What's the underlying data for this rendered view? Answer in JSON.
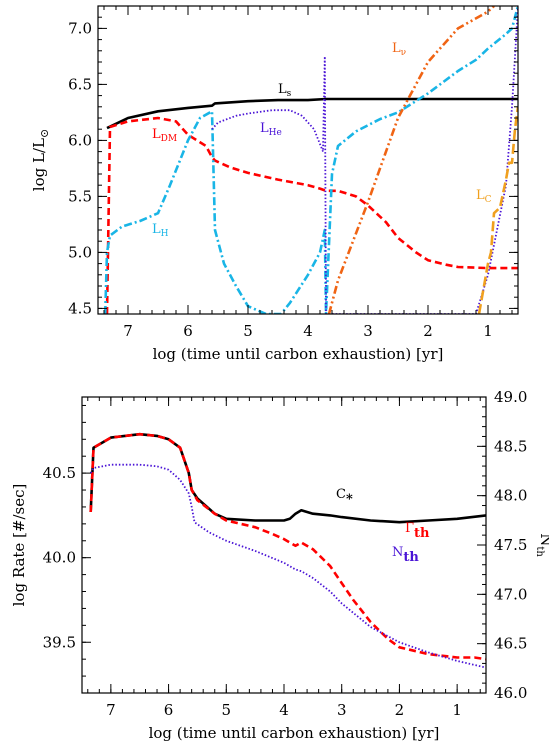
{
  "chart_data": [
    {
      "type": "line",
      "xlabel": "log (time until carbon exhaustion) [yr]",
      "ylabel": "log  L/L",
      "ylabel_symbol": "⊙",
      "xlim": [
        7.5,
        0.5
      ],
      "ylim": [
        4.45,
        7.2
      ],
      "xticks": [
        "7",
        "6",
        "5",
        "4",
        "3",
        "2",
        "1"
      ],
      "yticks": [
        "4.5",
        "5.0",
        "5.5",
        "6.0",
        "6.5",
        "7.0"
      ],
      "series": [
        {
          "name": "L",
          "sub": "s",
          "color": "#000000",
          "dash": "solid",
          "x": [
            7.35,
            7.0,
            6.5,
            6.0,
            5.6,
            5.55,
            5.0,
            4.5,
            4.0,
            3.7,
            3.0,
            2.0,
            1.0,
            0.5
          ],
          "y": [
            6.11,
            6.2,
            6.26,
            6.29,
            6.31,
            6.33,
            6.35,
            6.36,
            6.36,
            6.37,
            6.37,
            6.37,
            6.37,
            6.37
          ]
        },
        {
          "name": "L",
          "sub": "DM",
          "color": "#ff0000",
          "dash": "dash",
          "x": [
            7.35,
            7.3,
            7.0,
            6.5,
            6.2,
            6.0,
            5.7,
            5.6,
            5.55,
            5.3,
            5.0,
            4.5,
            4.0,
            3.8,
            3.7,
            3.5,
            3.2,
            3.0,
            2.7,
            2.5,
            2.2,
            2.0,
            1.7,
            1.5,
            1.0,
            0.5
          ],
          "y": [
            4.45,
            6.12,
            6.17,
            6.2,
            6.17,
            6.05,
            5.95,
            5.85,
            5.82,
            5.76,
            5.71,
            5.65,
            5.6,
            5.57,
            5.55,
            5.55,
            5.5,
            5.42,
            5.27,
            5.13,
            5.0,
            4.93,
            4.89,
            4.87,
            4.86,
            4.86
          ]
        },
        {
          "name": "L",
          "sub": "H",
          "color": "#19b5e6",
          "dash": "dashdot",
          "x": [
            7.38,
            7.35,
            7.3,
            7.1,
            6.8,
            6.5,
            6.3,
            6.0,
            5.8,
            5.6,
            5.55,
            5.4,
            5.2,
            5.0,
            4.7,
            4.45,
            4.3,
            4.0,
            3.8,
            3.72,
            3.7,
            3.6,
            3.5,
            3.2,
            2.8,
            2.5,
            2.0,
            1.5,
            1.2,
            1.0,
            0.7,
            0.6,
            0.5
          ],
          "y": [
            4.45,
            5.0,
            5.15,
            5.23,
            5.28,
            5.35,
            5.6,
            6.0,
            6.2,
            6.26,
            5.2,
            4.9,
            4.7,
            4.52,
            4.45,
            4.45,
            4.55,
            4.8,
            5.0,
            5.2,
            4.45,
            5.7,
            5.95,
            6.08,
            6.19,
            6.25,
            6.42,
            6.62,
            6.72,
            6.82,
            6.95,
            7.0,
            7.2
          ]
        },
        {
          "name": "L",
          "sub": "He",
          "color": "#4a14d6",
          "dash": "dot",
          "x": [
            5.6,
            5.5,
            5.2,
            5.0,
            4.6,
            4.3,
            4.1,
            3.9,
            3.75,
            3.72,
            3.7,
            3.5,
            3.0,
            2.5,
            2.0,
            1.5,
            1.2,
            1.0,
            0.7,
            0.6,
            0.5
          ],
          "y": [
            6.1,
            6.16,
            6.22,
            6.24,
            6.27,
            6.27,
            6.22,
            6.1,
            5.9,
            6.75,
            4.45,
            4.45,
            4.45,
            4.45,
            4.45,
            4.45,
            4.45,
            4.8,
            5.6,
            6.3,
            7.2
          ]
        },
        {
          "name": "L",
          "sub": "ν",
          "color": "#f06414",
          "dash": "dashdotdot",
          "x": [
            3.65,
            3.5,
            3.0,
            2.5,
            2.0,
            1.5,
            1.0,
            0.9
          ],
          "y": [
            4.45,
            4.75,
            5.45,
            6.2,
            6.7,
            7.0,
            7.15,
            7.2
          ]
        },
        {
          "name": "L",
          "sub": "C",
          "color": "#f0a01e",
          "dash": "longdash",
          "x": [
            1.15,
            1.1,
            1.0,
            0.95,
            0.9,
            0.8,
            0.7,
            0.65,
            0.6,
            0.55,
            0.5
          ],
          "y": [
            4.45,
            4.6,
            4.9,
            5.0,
            5.35,
            5.4,
            5.65,
            5.8,
            5.8,
            6.1,
            6.3
          ]
        }
      ]
    },
    {
      "type": "line",
      "xlabel": "log (time until carbon exhaustion) [yr]",
      "ylabel": "log Rate [#/sec]",
      "ylabel_right": "N",
      "ylabel_right_sub": "th",
      "xlim": [
        7.5,
        0.5
      ],
      "ylim": [
        39.2,
        40.95
      ],
      "ylim_right": [
        46.0,
        49.0
      ],
      "xticks": [
        "7",
        "6",
        "5",
        "4",
        "3",
        "2",
        "1"
      ],
      "yticks": [
        "39.5",
        "40.0",
        "40.5"
      ],
      "yticks_right": [
        "46.0",
        "46.5",
        "47.0",
        "47.5",
        "48.0",
        "48.5",
        "49.0"
      ],
      "series": [
        {
          "name": "C",
          "sub": "*",
          "color": "#000000",
          "dash": "solid",
          "x": [
            7.35,
            7.3,
            7.0,
            6.5,
            6.2,
            6.0,
            5.8,
            5.65,
            5.6,
            5.5,
            5.2,
            5.0,
            4.5,
            4.0,
            3.9,
            3.8,
            3.7,
            3.6,
            3.5,
            3.2,
            3.0,
            2.5,
            2.0,
            1.5,
            1.0,
            0.5
          ],
          "y": [
            40.27,
            40.65,
            40.71,
            40.73,
            40.72,
            40.7,
            40.65,
            40.5,
            40.4,
            40.35,
            40.26,
            40.23,
            40.22,
            40.22,
            40.23,
            40.26,
            40.28,
            40.27,
            40.26,
            40.25,
            40.24,
            40.22,
            40.21,
            40.22,
            40.23,
            40.25
          ]
        },
        {
          "name": "Γ",
          "sub": "th",
          "color": "#ff0000",
          "dash": "dash",
          "x": [
            7.35,
            7.3,
            7.0,
            6.5,
            6.2,
            6.0,
            5.8,
            5.65,
            5.6,
            5.5,
            5.2,
            5.0,
            4.5,
            4.2,
            4.0,
            3.8,
            3.7,
            3.5,
            3.2,
            3.0,
            2.8,
            2.5,
            2.2,
            2.0,
            1.5,
            1.0,
            0.7,
            0.5
          ],
          "y": [
            40.27,
            40.65,
            40.71,
            40.73,
            40.72,
            40.7,
            40.65,
            40.5,
            40.4,
            40.34,
            40.26,
            40.22,
            40.18,
            40.14,
            40.11,
            40.07,
            40.09,
            40.05,
            39.95,
            39.85,
            39.75,
            39.62,
            39.52,
            39.47,
            39.43,
            39.41,
            39.41,
            39.4
          ]
        },
        {
          "name": "N",
          "sub": "th",
          "color": "#4a14d6",
          "dash": "dot",
          "x": [
            7.35,
            7.3,
            7.0,
            6.5,
            6.2,
            6.0,
            5.8,
            5.65,
            5.6,
            5.55,
            5.3,
            5.0,
            4.5,
            4.0,
            3.8,
            3.7,
            3.5,
            3.2,
            3.0,
            2.5,
            2.0,
            1.5,
            1.0,
            0.5
          ],
          "y": [
            40.5,
            40.53,
            40.55,
            40.55,
            40.54,
            40.52,
            40.46,
            40.38,
            40.3,
            40.21,
            40.15,
            40.1,
            40.04,
            39.97,
            39.93,
            39.92,
            39.88,
            39.8,
            39.73,
            39.59,
            39.5,
            39.44,
            39.39,
            39.35
          ]
        }
      ]
    }
  ]
}
